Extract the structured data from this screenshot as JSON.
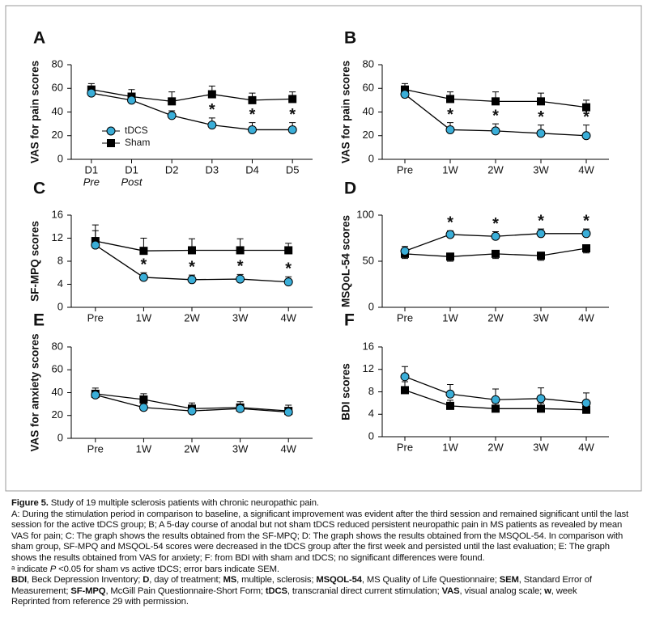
{
  "chart_data": [
    {
      "type": "line",
      "label": "A",
      "ylabel": "VAS for pain scores",
      "categories": [
        "D1",
        "D1",
        "D2",
        "D3",
        "D4",
        "D5"
      ],
      "category_sublabels": [
        "Pre",
        "Post",
        null,
        null,
        null,
        null
      ],
      "ylim": [
        0,
        80
      ],
      "yticks": [
        0,
        20,
        40,
        60,
        80
      ],
      "legend": "lower-left",
      "series": [
        {
          "name": "tDCS",
          "color": "#3aaed8",
          "marker": "circle",
          "values": [
            56,
            50,
            37,
            29,
            25,
            25
          ],
          "errors": [
            3,
            3,
            4,
            6,
            6,
            6
          ],
          "error_direction": "up"
        },
        {
          "name": "Sham",
          "color": "#000000",
          "marker": "square",
          "values": [
            59,
            53,
            49,
            55,
            50,
            51
          ],
          "errors": [
            5,
            6,
            8,
            7,
            6,
            6
          ],
          "error_direction": "up"
        }
      ],
      "significant": [
        false,
        false,
        false,
        true,
        true,
        true
      ],
      "significance_marker": "*"
    },
    {
      "type": "line",
      "label": "B",
      "ylabel": "VAS for pain scores",
      "categories": [
        "Pre",
        "1W",
        "2W",
        "3W",
        "4W"
      ],
      "ylim": [
        0,
        80
      ],
      "yticks": [
        0,
        20,
        40,
        60,
        80
      ],
      "legend": false,
      "series": [
        {
          "name": "tDCS",
          "color": "#3aaed8",
          "marker": "circle",
          "values": [
            55,
            25,
            24,
            22,
            20
          ],
          "errors": [
            4,
            6,
            6,
            7,
            9
          ],
          "error_direction": "up"
        },
        {
          "name": "Sham",
          "color": "#000000",
          "marker": "square",
          "values": [
            59,
            51,
            49,
            49,
            44
          ],
          "errors": [
            5,
            6,
            8,
            7,
            6
          ],
          "error_direction": "up"
        }
      ],
      "significant": [
        false,
        true,
        true,
        true,
        true
      ],
      "significance_marker": "*"
    },
    {
      "type": "line",
      "label": "C",
      "ylabel": "SF-MPQ scores",
      "categories": [
        "Pre",
        "1W",
        "2W",
        "3W",
        "4W"
      ],
      "ylim": [
        0,
        16
      ],
      "yticks": [
        0,
        4,
        8,
        12,
        16
      ],
      "legend": false,
      "series": [
        {
          "name": "tDCS",
          "color": "#3aaed8",
          "marker": "circle",
          "values": [
            10.8,
            5.2,
            4.8,
            4.9,
            4.4
          ],
          "errors": [
            2.5,
            0.8,
            0.8,
            0.8,
            0.9
          ],
          "error_direction": "up"
        },
        {
          "name": "Sham",
          "color": "#000000",
          "marker": "square",
          "values": [
            11.5,
            9.8,
            9.9,
            9.9,
            9.9
          ],
          "errors": [
            2.8,
            2.2,
            2.0,
            2.0,
            1.2
          ],
          "error_direction": "up"
        }
      ],
      "significant": [
        false,
        true,
        true,
        true,
        true
      ],
      "significance_marker": "*"
    },
    {
      "type": "line",
      "label": "D",
      "ylabel": "MSQoL-54 scores",
      "categories": [
        "Pre",
        "1W",
        "2W",
        "3W",
        "4W"
      ],
      "ylim": [
        0,
        100
      ],
      "yticks": [
        0,
        50,
        100
      ],
      "legend": false,
      "series": [
        {
          "name": "tDCS",
          "color": "#3aaed8",
          "marker": "circle",
          "values": [
            61,
            79,
            77,
            80,
            80
          ],
          "errors": [
            5,
            4,
            5,
            5,
            5
          ],
          "error_direction": "up"
        },
        {
          "name": "Sham",
          "color": "#000000",
          "marker": "square",
          "values": [
            58,
            55,
            58,
            56,
            64
          ],
          "errors": [
            5,
            5,
            5,
            5,
            5
          ],
          "error_direction": "down"
        }
      ],
      "significant": [
        false,
        true,
        true,
        true,
        true
      ],
      "significance_marker": "*"
    },
    {
      "type": "line",
      "label": "E",
      "ylabel": "VAS for anxiety scores",
      "categories": [
        "Pre",
        "1W",
        "2W",
        "3W",
        "4W"
      ],
      "ylim": [
        0,
        80
      ],
      "yticks": [
        0,
        20,
        40,
        60,
        80
      ],
      "legend": false,
      "series": [
        {
          "name": "tDCS",
          "color": "#3aaed8",
          "marker": "circle",
          "values": [
            38,
            27,
            24,
            26,
            23
          ],
          "errors": [
            4,
            3,
            3,
            4,
            3
          ],
          "error_direction": "up"
        },
        {
          "name": "Sham",
          "color": "#000000",
          "marker": "square",
          "values": [
            39,
            34,
            26,
            27,
            24
          ],
          "errors": [
            5,
            5,
            5,
            5,
            5
          ],
          "error_direction": "up"
        }
      ]
    },
    {
      "type": "line",
      "label": "F",
      "ylabel": "BDI scores",
      "categories": [
        "Pre",
        "1W",
        "2W",
        "3W",
        "4W"
      ],
      "ylim": [
        0,
        16
      ],
      "yticks": [
        0,
        4,
        8,
        12,
        16
      ],
      "legend": false,
      "series": [
        {
          "name": "tDCS",
          "color": "#3aaed8",
          "marker": "circle",
          "values": [
            10.7,
            7.6,
            6.6,
            6.8,
            6.0
          ],
          "errors": [
            1.8,
            1.7,
            1.9,
            1.9,
            1.8
          ],
          "error_direction": "up"
        },
        {
          "name": "Sham",
          "color": "#000000",
          "marker": "square",
          "values": [
            8.3,
            5.5,
            5.0,
            5.0,
            4.8
          ],
          "errors": [
            1.5,
            1.0,
            1.0,
            1.0,
            1.0
          ],
          "error_direction": "up"
        }
      ]
    }
  ],
  "caption": {
    "figure_label": "Figure 5.",
    "title": " Study of 19 multiple sclerosis patients with chronic neuropathic pain.",
    "description": "A: During the stimulation period in comparison to baseline, a significant improvement was evident after the third session and remained significant until the last session for the active tDCS group; B; A 5-day course of anodal but not sham tDCS reduced persistent neuropathic pain in MS patients as revealed by mean VAS for pain; C: The graph shows the results obtained from the SF-MPQ; D: The graph shows the results obtained from the MSQOL-54. In comparison with sham group, SF-MPQ and MSQOL-54 scores were decreased in the tDCS group after the first week and persisted until the last evaluation; E: The graph shows the results obtained from VAS for anxiety; F: from BDI with sham and tDCS; no significant differences were found.",
    "footnote": [
      "ᵃ indicate ",
      "P",
      " <0.05 for sham vs active tDCS; error bars indicate SEM."
    ],
    "abbreviations": [
      {
        "term": "BDI",
        "definition": ", Beck Depression Inventory; "
      },
      {
        "term": "D",
        "definition": ", day of treatment; "
      },
      {
        "term": "MS",
        "definition": ", multiple, sclerosis; "
      },
      {
        "term": "MSQOL-54",
        "definition": ", MS Quality of Life Questionnaire; "
      },
      {
        "term": "SEM",
        "definition": ", Standard Error of Measurement; "
      },
      {
        "term": "SF-MPQ",
        "definition": ", McGill Pain Questionnaire-Short Form; "
      },
      {
        "term": "tDCS",
        "definition": ", transcranial direct current stimulation; "
      },
      {
        "term": "VAS",
        "definition": ", visual analog scale; "
      },
      {
        "term": "w",
        "definition": ", week"
      }
    ],
    "source": "Reprinted from reference 29 with permission."
  }
}
